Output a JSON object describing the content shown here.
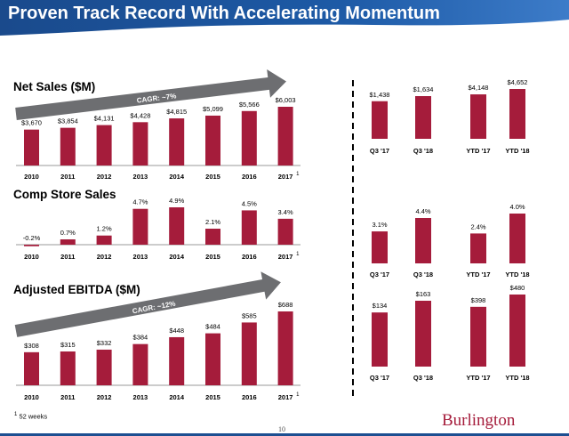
{
  "page": {
    "title": "Proven Track Record With Accelerating Momentum",
    "page_number": "10",
    "footnote_mark": "1",
    "footnote_text": "52 weeks",
    "logo_text": "Burlington"
  },
  "colors": {
    "bar": "#a51c3b",
    "header_blue": "#1d4f91",
    "arrow": "#6d6e71"
  },
  "chart_data": [
    {
      "id": "net-sales",
      "type": "bar",
      "title": "Net Sales ($M)",
      "annotation": "CAGR: ~7%",
      "categories": [
        "2010",
        "2011",
        "2012",
        "2013",
        "2014",
        "2015",
        "2016",
        "2017"
      ],
      "values": [
        3670,
        3854,
        4131,
        4428,
        4815,
        5099,
        5566,
        6003
      ],
      "value_labels": [
        "$3,670",
        "$3,854",
        "$4,131",
        "$4,428",
        "$4,815",
        "$5,099",
        "$5,566",
        "$6,003"
      ],
      "footnote_category": "2017",
      "grid": false
    },
    {
      "id": "net-sales-q",
      "type": "bar",
      "categories": [
        "Q3 '17",
        "Q3 '18"
      ],
      "values": [
        1438,
        1634
      ],
      "value_labels": [
        "$1,438",
        "$1,634"
      ]
    },
    {
      "id": "net-sales-ytd",
      "type": "bar",
      "categories": [
        "YTD '17",
        "YTD '18"
      ],
      "values": [
        4148,
        4652
      ],
      "value_labels": [
        "$4,148",
        "$4,652"
      ]
    },
    {
      "id": "comp-sales",
      "type": "bar",
      "title": "Comp Store Sales",
      "categories": [
        "2010",
        "2011",
        "2012",
        "2013",
        "2014",
        "2015",
        "2016",
        "2017"
      ],
      "values": [
        -0.2,
        0.7,
        1.2,
        4.7,
        4.9,
        2.1,
        4.5,
        3.4
      ],
      "value_labels": [
        "-0.2%",
        "0.7%",
        "1.2%",
        "4.7%",
        "4.9%",
        "2.1%",
        "4.5%",
        "3.4%"
      ],
      "footnote_category": "2017",
      "grid": false
    },
    {
      "id": "comp-sales-q",
      "type": "bar",
      "categories": [
        "Q3 '17",
        "Q3 '18"
      ],
      "values": [
        3.1,
        4.4
      ],
      "value_labels": [
        "3.1%",
        "4.4%"
      ]
    },
    {
      "id": "comp-sales-ytd",
      "type": "bar",
      "categories": [
        "YTD '17",
        "YTD '18"
      ],
      "values": [
        2.4,
        4.0
      ],
      "value_labels": [
        "2.4%",
        "4.0%"
      ]
    },
    {
      "id": "ebitda",
      "type": "bar",
      "title": "Adjusted EBITDA ($M)",
      "annotation": "CAGR: ~12%",
      "categories": [
        "2010",
        "2011",
        "2012",
        "2013",
        "2014",
        "2015",
        "2016",
        "2017"
      ],
      "values": [
        308,
        315,
        332,
        384,
        448,
        484,
        585,
        688
      ],
      "value_labels": [
        "$308",
        "$315",
        "$332",
        "$384",
        "$448",
        "$484",
        "$585",
        "$688"
      ],
      "footnote_category": "2017",
      "grid": false
    },
    {
      "id": "ebitda-q",
      "type": "bar",
      "categories": [
        "Q3 '17",
        "Q3 '18"
      ],
      "values": [
        134,
        163
      ],
      "value_labels": [
        "$134",
        "$163"
      ]
    },
    {
      "id": "ebitda-ytd",
      "type": "bar",
      "categories": [
        "YTD '17",
        "YTD '18"
      ],
      "values": [
        398,
        480
      ],
      "value_labels": [
        "$398",
        "$480"
      ]
    }
  ]
}
